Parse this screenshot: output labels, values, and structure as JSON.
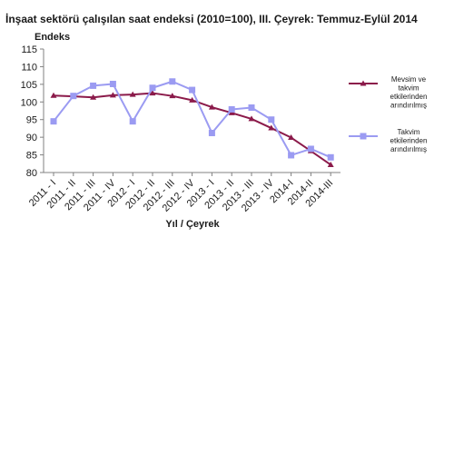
{
  "chart_data": {
    "type": "line",
    "title": "İnşaat sektörü çalışılan saat endeksi (2010=100), III. Çeyrek: Temmuz-Eylül 2014",
    "ylabel": "Endeks",
    "xlabel": "Yıl / Çeyrek",
    "ylim": [
      80,
      115
    ],
    "yticks": [
      80,
      85,
      90,
      95,
      100,
      105,
      110,
      115
    ],
    "categories": [
      "2011 - I",
      "2011 - II",
      "2011 - III",
      "2011 - IV",
      "2012 - I",
      "2012 - II",
      "2012 - III",
      "2012 - IV",
      "2013 - I",
      "2013 - II",
      "2013 - III",
      "2013 - IV",
      "2014-I",
      "2014-II",
      "2014-III"
    ],
    "grid": false,
    "legend_position": "right",
    "series": [
      {
        "name_lines": [
          "Mevsim ve",
          "takvim",
          "etkilerinden",
          "arındırılmış"
        ],
        "marker": "triangle",
        "color": "#8b1a4a",
        "values": [
          101.8,
          101.6,
          101.3,
          101.9,
          102.1,
          102.5,
          101.7,
          100.5,
          98.5,
          96.9,
          95.2,
          92.6,
          89.9,
          86.1,
          82.2
        ]
      },
      {
        "name_lines": [
          "Takvim",
          "etkilerinden",
          "arındırılmış"
        ],
        "marker": "square",
        "color": "#9b9bf2",
        "values": [
          94.5,
          101.7,
          104.6,
          105.1,
          94.5,
          104.0,
          105.8,
          103.4,
          91.2,
          97.9,
          98.4,
          95.0,
          84.9,
          86.7,
          84.3
        ]
      }
    ]
  }
}
